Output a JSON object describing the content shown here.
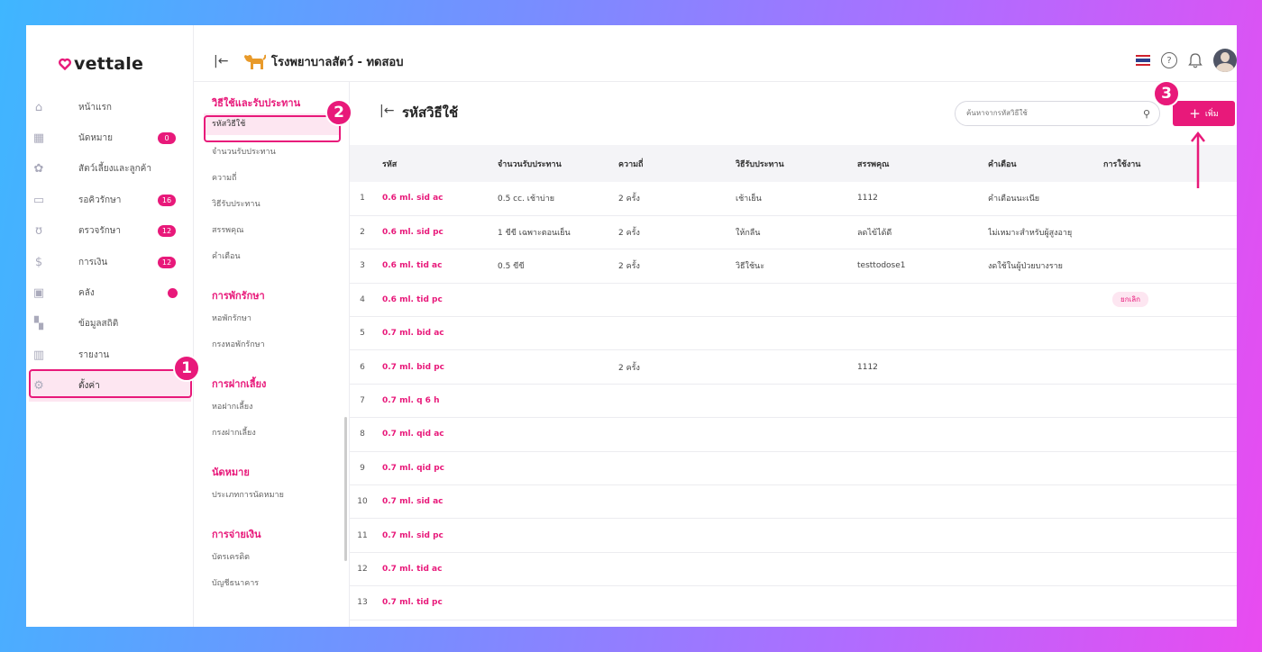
{
  "brand": {
    "name": "vettale",
    "accent": "#e8197a"
  },
  "topbar": {
    "clinic_name": "โรงพยาบาลสัตว์ - ทดสอบ"
  },
  "sidebar": {
    "items": [
      {
        "label": "หน้าแรก",
        "icon": "home-icon"
      },
      {
        "label": "นัดหมาย",
        "icon": "calendar-icon",
        "badge": "0"
      },
      {
        "label": "สัตว์เลี้ยงและลูกค้า",
        "icon": "paw-icon"
      },
      {
        "label": "รอคิวรักษา",
        "icon": "sofa-icon",
        "badge": "16"
      },
      {
        "label": "ตรวจรักษา",
        "icon": "stethoscope-icon",
        "badge": "12"
      },
      {
        "label": "การเงิน",
        "icon": "money-icon",
        "badge": "12"
      },
      {
        "label": "คลัง",
        "icon": "box-icon",
        "dot": true
      },
      {
        "label": "ข้อมูลสถิติ",
        "icon": "grid-icon"
      },
      {
        "label": "รายงาน",
        "icon": "chart-icon"
      },
      {
        "label": "ตั้งค่า",
        "icon": "gear-icon"
      }
    ]
  },
  "subnav": {
    "sections": [
      {
        "title": "วิธีใช้และรับประทาน",
        "items": [
          "รหัสวิธีใช้",
          "จำนวนรับประทาน",
          "ความถี่",
          "วิธีรับประทาน",
          "สรรพคุณ",
          "คำเตือน"
        ]
      },
      {
        "title": "การพักรักษา",
        "items": [
          "หอพักรักษา",
          "กรงหอพักรักษา"
        ]
      },
      {
        "title": "การฝากเลี้ยง",
        "items": [
          "หอฝากเลี้ยง",
          "กรงฝากเลี้ยง"
        ]
      },
      {
        "title": "นัดหมาย",
        "items": [
          "ประเภทการนัดหมาย"
        ]
      },
      {
        "title": "การจ่ายเงิน",
        "items": [
          "บัตรเครดิต",
          "บัญชีธนาคาร"
        ]
      }
    ]
  },
  "main": {
    "title": "รหัสวิธีใช้",
    "search_placeholder": "ค้นหาจากรหัสวิธีใช้",
    "add_label": "เพิ่ม",
    "columns": [
      "รหัส",
      "จำนวนรับประทาน",
      "ความถี่",
      "วิธีรับประทาน",
      "สรรพคุณ",
      "คำเตือน",
      "การใช้งาน"
    ],
    "rows": [
      {
        "no": "1",
        "code": "0.6 ml. sid ac",
        "amount": "0.5 cc. เช้าบ่าย",
        "freq": "2 ครั้ง",
        "method": "เช้าเย็น",
        "benefit": "1112",
        "warning": "คำเตือนนะเนีย",
        "status": ""
      },
      {
        "no": "2",
        "code": "0.6 ml. sid pc",
        "amount": "1 ขีขี เฉพาะตอนเย็น",
        "freq": "2 ครั้ง",
        "method": "ให้กลืน",
        "benefit": "ลดไข้ได้ดี",
        "warning": "ไม่เหมาะสำหรับผู้สูงอายุ",
        "status": ""
      },
      {
        "no": "3",
        "code": "0.6 ml. tid ac",
        "amount": "0.5 ขีขี",
        "freq": "2 ครั้ง",
        "method": "วิธีใช้นะ",
        "benefit": "testtodose1",
        "warning": "งดใช้ในผู้ป่วยบางราย",
        "status": ""
      },
      {
        "no": "4",
        "code": "0.6 ml. tid pc",
        "amount": "",
        "freq": "",
        "method": "",
        "benefit": "",
        "warning": "",
        "status": "ยกเลิก"
      },
      {
        "no": "5",
        "code": "0.7 ml. bid ac",
        "amount": "",
        "freq": "",
        "method": "",
        "benefit": "",
        "warning": "",
        "status": ""
      },
      {
        "no": "6",
        "code": "0.7 ml. bid pc",
        "amount": "",
        "freq": "2 ครั้ง",
        "method": "",
        "benefit": "1112",
        "warning": "",
        "status": ""
      },
      {
        "no": "7",
        "code": "0.7 ml. q 6 h",
        "amount": "",
        "freq": "",
        "method": "",
        "benefit": "",
        "warning": "",
        "status": ""
      },
      {
        "no": "8",
        "code": "0.7 ml. qid ac",
        "amount": "",
        "freq": "",
        "method": "",
        "benefit": "",
        "warning": "",
        "status": ""
      },
      {
        "no": "9",
        "code": "0.7 ml. qid pc",
        "amount": "",
        "freq": "",
        "method": "",
        "benefit": "",
        "warning": "",
        "status": ""
      },
      {
        "no": "10",
        "code": "0.7 ml. sid ac",
        "amount": "",
        "freq": "",
        "method": "",
        "benefit": "",
        "warning": "",
        "status": ""
      },
      {
        "no": "11",
        "code": "0.7 ml. sid pc",
        "amount": "",
        "freq": "",
        "method": "",
        "benefit": "",
        "warning": "",
        "status": ""
      },
      {
        "no": "12",
        "code": "0.7 ml. tid ac",
        "amount": "",
        "freq": "",
        "method": "",
        "benefit": "",
        "warning": "",
        "status": ""
      },
      {
        "no": "13",
        "code": "0.7 ml. tid pc",
        "amount": "",
        "freq": "",
        "method": "",
        "benefit": "",
        "warning": "",
        "status": ""
      }
    ]
  },
  "annotations": {
    "step1": "1",
    "step2": "2",
    "step3": "3"
  }
}
